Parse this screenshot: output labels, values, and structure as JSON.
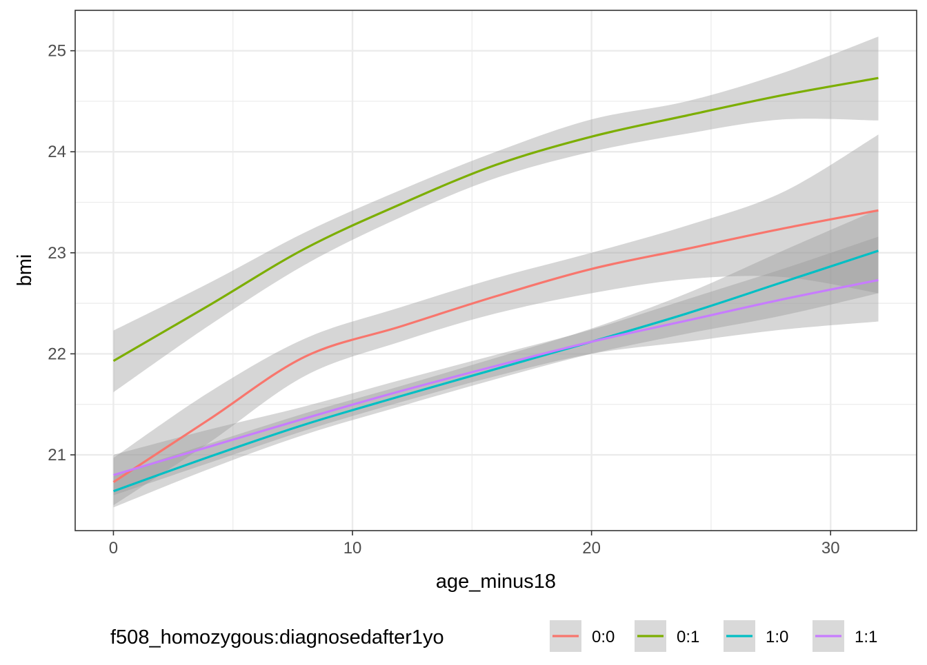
{
  "colors": {
    "band": "#999999",
    "grid": "#ebebeb",
    "panel_border": "#333333",
    "legend_key_bg": "#d9d9d9"
  },
  "chart_data": {
    "type": "line",
    "title": "",
    "xlabel": "age_minus18",
    "ylabel": "bmi",
    "xlim": [
      -1.6,
      33.6
    ],
    "ylim": [
      20.25,
      25.4
    ],
    "x_ticks": [
      0,
      10,
      20,
      30
    ],
    "y_ticks": [
      21,
      22,
      23,
      24,
      25
    ],
    "x_tick_labels": [
      "0",
      "10",
      "20",
      "30"
    ],
    "y_tick_labels": [
      "21",
      "22",
      "23",
      "24",
      "25"
    ],
    "grid": true,
    "legend": {
      "position": "bottom",
      "title": "f508_homozygous:diagnosedafter1yo"
    },
    "series": [
      {
        "name": "0:0",
        "color": "#F8766D",
        "x": [
          0,
          4,
          8,
          12,
          16,
          20,
          24,
          28,
          32
        ],
        "y": [
          20.73,
          21.35,
          21.97,
          22.27,
          22.57,
          22.84,
          23.04,
          23.24,
          23.42
        ],
        "lower": [
          20.5,
          21.12,
          21.78,
          22.12,
          22.4,
          22.6,
          22.74,
          22.76,
          22.6
        ],
        "upper": [
          20.97,
          21.62,
          22.15,
          22.46,
          22.75,
          23.0,
          23.27,
          23.6,
          24.17
        ]
      },
      {
        "name": "0:1",
        "color": "#7CAE00",
        "x": [
          0,
          4,
          8,
          12,
          16,
          20,
          24,
          28,
          32
        ],
        "y": [
          21.93,
          22.48,
          23.04,
          23.48,
          23.87,
          24.15,
          24.36,
          24.56,
          24.73
        ],
        "lower": [
          21.62,
          22.28,
          22.88,
          23.35,
          23.74,
          24.0,
          24.18,
          24.32,
          24.31
        ],
        "upper": [
          22.23,
          22.7,
          23.2,
          23.62,
          24.0,
          24.32,
          24.5,
          24.78,
          25.14
        ]
      },
      {
        "name": "1:0",
        "color": "#00BFC4",
        "x": [
          0,
          4,
          8,
          12,
          16,
          20,
          24,
          28,
          32
        ],
        "y": [
          20.64,
          20.98,
          21.3,
          21.58,
          21.85,
          22.12,
          22.4,
          22.71,
          23.02
        ],
        "lower": [
          20.48,
          20.86,
          21.2,
          21.48,
          21.75,
          22.0,
          22.2,
          22.38,
          22.6
        ],
        "upper": [
          20.8,
          21.11,
          21.41,
          21.68,
          21.96,
          22.25,
          22.6,
          23.02,
          23.43
        ]
      },
      {
        "name": "1:1",
        "color": "#C77CFF",
        "x": [
          0,
          4,
          8,
          12,
          16,
          20,
          24,
          28,
          32
        ],
        "y": [
          20.8,
          21.08,
          21.36,
          21.63,
          21.88,
          22.12,
          22.33,
          22.54,
          22.73
        ],
        "lower": [
          20.6,
          20.92,
          21.24,
          21.52,
          21.78,
          22.0,
          22.12,
          22.24,
          22.32
        ],
        "upper": [
          21.0,
          21.25,
          21.48,
          21.74,
          21.99,
          22.24,
          22.54,
          22.84,
          23.16
        ]
      }
    ]
  }
}
